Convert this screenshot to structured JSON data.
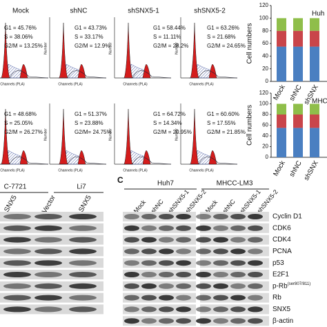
{
  "flow_panels": [
    {
      "title": "Mock",
      "g1": "G1 = 45.76%",
      "s": "S = 38.06%",
      "g2m": "G2/M = 13.25%"
    },
    {
      "title": "shNC",
      "g1": "G1 = 43.73%",
      "s": "S = 33.17%",
      "g2m": "G2/M = 12.9%"
    },
    {
      "title": "shSNX5-1",
      "g1": "G1 = 58.44%",
      "s": "S = 11.11%",
      "g2m": "G2/M = 28.2%"
    },
    {
      "title": "shSNX5-2",
      "g1": "G1 = 63.26%",
      "s": "S = 21.68%",
      "g2m": "G2/M = 24.65%"
    },
    {
      "g1": "G1 = 48.68%",
      "s": "S = 25.05%",
      "g2m": "G2/M = 26.27%"
    },
    {
      "g1": "G1 = 51.37%",
      "s": "S = 23.88%",
      "g2m": "G2/M= 24.75%"
    },
    {
      "g1": "G1 = 64.72%",
      "s": "S = 14.34%",
      "g2m": "G2/M = 20.95%"
    },
    {
      "g1": "G1 = 60.60%",
      "s": "S = 17.55%",
      "g2m": "G2/M = 21.85%"
    }
  ],
  "axis_labels": {
    "y": "Number",
    "x": "Channels (PLA)"
  },
  "cell_charts": [
    {
      "label": "Huh",
      "ylabel": "Cell numbers",
      "yticks": [
        "0",
        "20",
        "40",
        "60",
        "80",
        "100",
        "120"
      ],
      "categories": [
        "Mock",
        "shNC",
        "shSNX"
      ]
    },
    {
      "label": "MHCC",
      "ylabel": "Cell numbers",
      "yticks": [
        "0",
        "20",
        "40",
        "60",
        "80",
        "100",
        "120"
      ],
      "categories": [
        "Mock",
        "shNC",
        "shSNX"
      ]
    }
  ],
  "blot_left": {
    "groups": [
      "C-7721",
      "Li7"
    ],
    "lanes": [
      "SNX5",
      "Vector",
      "SNX5"
    ]
  },
  "blot_c": {
    "panel": "C",
    "groups": [
      "Huh7",
      "MHCC-LM3"
    ],
    "lanes": [
      "Mock",
      "shNC",
      "shSNX5-1",
      "shSNX5-2",
      "Mock",
      "shNC",
      "shSNX5-1",
      "shSNX5-2"
    ],
    "proteins": [
      "Cyclin D1",
      "CDK6",
      "CDK4",
      "PCNA",
      "p53",
      "E2F1",
      "p-Rb",
      "Rb",
      "SNX5",
      "β-actin"
    ],
    "superscript": "(ser807/811)"
  }
}
